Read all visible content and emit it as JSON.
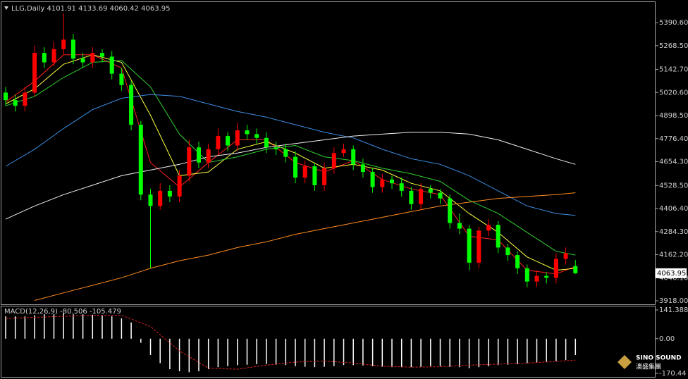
{
  "chart_data": [
    {
      "type": "candlestick",
      "title": "LLG,Daily  4101.91 4133.69 4060.42 4063.95",
      "up_color": "#ff0000",
      "down_color": "#00ff00",
      "open": [
        5020,
        4980,
        4950,
        5020,
        5230,
        5180,
        5250,
        5300,
        5200,
        5180,
        5230,
        5210,
        5120,
        5060,
        4850,
        4480,
        4420,
        4500,
        4470,
        4580,
        4730,
        4650,
        4720,
        4790,
        4740,
        4820,
        4800,
        4780,
        4730,
        4720,
        4680,
        4570,
        4630,
        4530,
        4620,
        4700,
        4720,
        4640,
        4600,
        4520,
        4560,
        4540,
        4500,
        4430,
        4510,
        4490,
        4460,
        4330,
        4300,
        4120,
        4290,
        4320,
        4200,
        4160,
        4090,
        4020,
        4050,
        4040,
        4140,
        4101.91
      ],
      "high": [
        5050,
        5010,
        5050,
        5270,
        5260,
        5290,
        5440,
        5330,
        5230,
        5260,
        5250,
        5240,
        5150,
        5080,
        4870,
        4510,
        4540,
        4530,
        4610,
        4770,
        4760,
        4750,
        4830,
        4810,
        4860,
        4850,
        4830,
        4810,
        4760,
        4750,
        4710,
        4660,
        4650,
        4650,
        4730,
        4750,
        4740,
        4670,
        4620,
        4590,
        4580,
        4570,
        4520,
        4540,
        4530,
        4510,
        4480,
        4380,
        4320,
        4310,
        4350,
        4340,
        4220,
        4180,
        4110,
        4080,
        4070,
        4170,
        4200,
        4133.69
      ],
      "low": [
        4950,
        4920,
        4920,
        5000,
        5150,
        5160,
        5220,
        5170,
        5150,
        5150,
        5180,
        5090,
        5030,
        4820,
        4450,
        4093,
        4400,
        4440,
        4440,
        4550,
        4620,
        4620,
        4690,
        4710,
        4710,
        4770,
        4750,
        4700,
        4690,
        4650,
        4540,
        4540,
        4500,
        4500,
        4590,
        4680,
        4610,
        4570,
        4490,
        4490,
        4510,
        4470,
        4400,
        4400,
        4460,
        4430,
        4300,
        4270,
        4080,
        4090,
        4260,
        4170,
        4130,
        4060,
        3990,
        3990,
        4010,
        4010,
        4110,
        4060.42
      ],
      "close": [
        4980,
        4950,
        5020,
        5230,
        5180,
        5250,
        5300,
        5200,
        5180,
        5230,
        5210,
        5120,
        5060,
        4850,
        4480,
        4420,
        4500,
        4470,
        4580,
        4730,
        4650,
        4720,
        4790,
        4740,
        4820,
        4800,
        4780,
        4730,
        4720,
        4680,
        4570,
        4630,
        4530,
        4620,
        4700,
        4720,
        4640,
        4600,
        4520,
        4560,
        4540,
        4500,
        4430,
        4510,
        4490,
        4460,
        4330,
        4300,
        4120,
        4290,
        4320,
        4200,
        4160,
        4090,
        4020,
        4050,
        4040,
        4140,
        4170,
        4063.95
      ],
      "ma_x": [
        0,
        3,
        6,
        9,
        12,
        15,
        18,
        21,
        24,
        27,
        30,
        33,
        36,
        39,
        42,
        45,
        48,
        51,
        54,
        57,
        59
      ],
      "series": [
        {
          "color": "#ff2020",
          "values": [
            4970,
            5080,
            5220,
            5220,
            5150,
            4650,
            4520,
            4650,
            4770,
            4770,
            4650,
            4600,
            4660,
            4560,
            4510,
            4480,
            4260,
            4240,
            4080,
            4060,
            4100
          ]
        },
        {
          "color": "#ffff40",
          "values": [
            4960,
            5040,
            5170,
            5220,
            5180,
            4900,
            4580,
            4600,
            4720,
            4760,
            4700,
            4620,
            4640,
            4610,
            4540,
            4500,
            4380,
            4280,
            4150,
            4080,
            4090
          ]
        },
        {
          "color": "#30d030",
          "values": [
            4950,
            5000,
            5100,
            5180,
            5190,
            5050,
            4800,
            4650,
            4680,
            4720,
            4740,
            4680,
            4660,
            4620,
            4590,
            4550,
            4450,
            4380,
            4280,
            4180,
            4160
          ]
        },
        {
          "color": "#3c8ce0",
          "values": [
            4630,
            4720,
            4830,
            4930,
            4990,
            5010,
            5000,
            4960,
            4920,
            4890,
            4850,
            4810,
            4780,
            4720,
            4670,
            4640,
            4580,
            4500,
            4420,
            4380,
            4370
          ]
        },
        {
          "color": "#f0f0f0",
          "values": [
            4350,
            4420,
            4480,
            4530,
            4580,
            4610,
            4640,
            4680,
            4700,
            4730,
            4750,
            4770,
            4790,
            4800,
            4810,
            4810,
            4800,
            4770,
            4720,
            4670,
            4640
          ]
        },
        {
          "color": "#ff8c20",
          "values": [
            null,
            3920,
            3960,
            4000,
            4040,
            4090,
            4130,
            4160,
            4200,
            4230,
            4270,
            4300,
            4330,
            4360,
            4390,
            4420,
            4440,
            4460,
            4470,
            4480,
            4490
          ]
        }
      ],
      "ylim": [
        3899.4,
        5491.3
      ],
      "yticks": [
        {
          "value": 5390.6,
          "label": "5390.60"
        },
        {
          "value": 5268.5,
          "label": "5268.50"
        },
        {
          "value": 5142.7,
          "label": "5142.70"
        },
        {
          "value": 5020.6,
          "label": "5020.60"
        },
        {
          "value": 4898.5,
          "label": "4898.50"
        },
        {
          "value": 4776.4,
          "label": "4776.40"
        },
        {
          "value": 4654.3,
          "label": "4654.30"
        },
        {
          "value": 4528.5,
          "label": "4528.50"
        },
        {
          "value": 4406.4,
          "label": "4406.40"
        },
        {
          "value": 4284.3,
          "label": "4284.30"
        },
        {
          "value": 4162.2,
          "label": "4162.20"
        },
        {
          "value": 4040.1,
          "label": "4040.10"
        },
        {
          "value": 3918,
          "label": "3918.00"
        }
      ]
    },
    {
      "type": "macd",
      "title": "MACD(12,26,9) -80.506 -105.479",
      "histogram": {
        "color": "#ffffff",
        "values": [
          110,
          110,
          110,
          115,
          120,
          120,
          125,
          120,
          120,
          118,
          115,
          110,
          100,
          80,
          -20,
          -80,
          -120,
          -150,
          -160,
          -165,
          -160,
          -150,
          -140,
          -135,
          -130,
          -128,
          -125,
          -125,
          -128,
          -130,
          -135,
          -138,
          -140,
          -138,
          -135,
          -130,
          -130,
          -132,
          -135,
          -138,
          -140,
          -140,
          -140,
          -138,
          -135,
          -135,
          -138,
          -140,
          -145,
          -140,
          -135,
          -130,
          -128,
          -125,
          -120,
          -118,
          -115,
          -110,
          -105,
          -80.506
        ]
      },
      "signal": {
        "color": "#e02020",
        "x": [
          0,
          3,
          6,
          9,
          12,
          15,
          18,
          21,
          24,
          27,
          30,
          33,
          36,
          39,
          42,
          45,
          48,
          51,
          54,
          57,
          59
        ],
        "values": [
          100,
          105,
          110,
          115,
          115,
          60,
          -60,
          -145,
          -150,
          -130,
          -115,
          -110,
          -120,
          -135,
          -140,
          -138,
          -130,
          -125,
          -120,
          -112,
          -105.479
        ]
      },
      "ylim": [
        -187.8,
        158.7
      ],
      "yticks": [
        141.388,
        {
          "value": 0,
          "label": "0.00"
        },
        -170.44
      ]
    }
  ],
  "logo": {
    "name": "SINO SOUND",
    "chinese": "澳盛集團"
  }
}
